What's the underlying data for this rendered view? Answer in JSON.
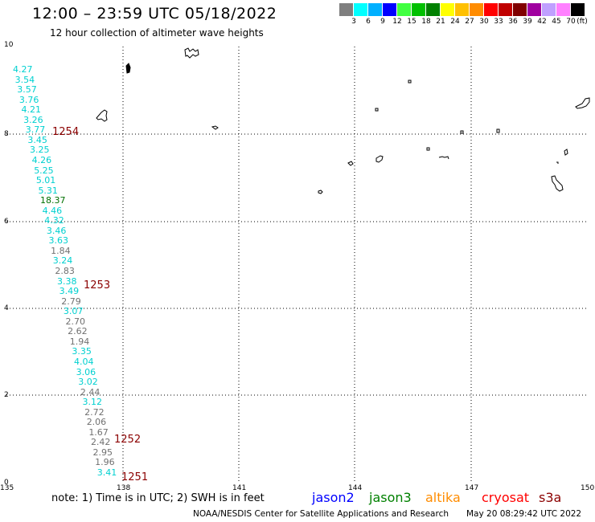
{
  "header": {
    "title": "12:00 – 23:59 UTC 05/18/2022",
    "subtitle": "12 hour collection of altimeter wave heights"
  },
  "legend": {
    "colors": [
      "#7f7f7f",
      "#00ffff",
      "#00b0ff",
      "#0000ff",
      "#40ff40",
      "#00c000",
      "#008000",
      "#ffff00",
      "#ffc000",
      "#ff8c00",
      "#ff0000",
      "#c00000",
      "#800000",
      "#a000a0",
      "#c0a0ff",
      "#ff80ff",
      "#000000"
    ],
    "labels": [
      "3",
      "6",
      "9",
      "12",
      "15",
      "18",
      "21",
      "24",
      "27",
      "30",
      "33",
      "36",
      "39",
      "42",
      "45",
      "70"
    ],
    "unit": "(ft)"
  },
  "axes": {
    "x_ticks": [
      "135",
      "138",
      "141",
      "144",
      "147",
      "150"
    ],
    "y_ticks": [
      "10",
      "8",
      "6",
      "4",
      "2",
      "0"
    ]
  },
  "measurements": [
    {
      "v": "4.27",
      "c": "#00d0d0"
    },
    {
      "v": "3.54",
      "c": "#00d0d0"
    },
    {
      "v": "3.57",
      "c": "#00d0d0"
    },
    {
      "v": "3.76",
      "c": "#00d0d0"
    },
    {
      "v": "4.21",
      "c": "#00d0d0"
    },
    {
      "v": "3.26",
      "c": "#00d0d0"
    },
    {
      "v": "3.77",
      "c": "#00d0d0"
    },
    {
      "v": "3.45",
      "c": "#00d0d0"
    },
    {
      "v": "3.25",
      "c": "#00d0d0"
    },
    {
      "v": "4.26",
      "c": "#00d0d0"
    },
    {
      "v": "5.25",
      "c": "#00d0d0"
    },
    {
      "v": "5.01",
      "c": "#00d0d0"
    },
    {
      "v": "5.31",
      "c": "#00d0d0"
    },
    {
      "v": "18.37",
      "c": "#007000"
    },
    {
      "v": "4.46",
      "c": "#00d0d0"
    },
    {
      "v": "4.32",
      "c": "#00d0d0"
    },
    {
      "v": "3.46",
      "c": "#00d0d0"
    },
    {
      "v": "3.63",
      "c": "#00d0d0"
    },
    {
      "v": "1.84",
      "c": "#707070"
    },
    {
      "v": "3.24",
      "c": "#00d0d0"
    },
    {
      "v": "2.83",
      "c": "#707070"
    },
    {
      "v": "3.38",
      "c": "#00d0d0"
    },
    {
      "v": "3.49",
      "c": "#00d0d0"
    },
    {
      "v": "2.79",
      "c": "#707070"
    },
    {
      "v": "3.07",
      "c": "#00d0d0"
    },
    {
      "v": "2.70",
      "c": "#707070"
    },
    {
      "v": "2.62",
      "c": "#707070"
    },
    {
      "v": "1.94",
      "c": "#707070"
    },
    {
      "v": "3.35",
      "c": "#00d0d0"
    },
    {
      "v": "4.04",
      "c": "#00d0d0"
    },
    {
      "v": "3.06",
      "c": "#00d0d0"
    },
    {
      "v": "3.02",
      "c": "#00d0d0"
    },
    {
      "v": "2.44",
      "c": "#707070"
    },
    {
      "v": "3.12",
      "c": "#00d0d0"
    },
    {
      "v": "2.72",
      "c": "#707070"
    },
    {
      "v": "2.06",
      "c": "#707070"
    },
    {
      "v": "1.67",
      "c": "#707070"
    },
    {
      "v": "2.42",
      "c": "#707070"
    },
    {
      "v": "2.95",
      "c": "#707070"
    },
    {
      "v": "1.96",
      "c": "#707070"
    },
    {
      "v": "3.41",
      "c": "#00d0d0"
    }
  ],
  "passes": [
    "1254",
    "1253",
    "1252",
    "1251"
  ],
  "footer": {
    "note": "note: 1) Time is in UTC; 2) SWH is in feet",
    "satellites": [
      {
        "name": "jason2",
        "color": "#0000ff"
      },
      {
        "name": "jason3",
        "color": "#008000"
      },
      {
        "name": "altika",
        "color": "#ff8c00"
      },
      {
        "name": "cryosat",
        "color": "#ff0000"
      },
      {
        "name": "s3a",
        "color": "#8b0000"
      }
    ],
    "credit": "NOAA/NESDIS Center for Satellite Applications and Research",
    "timestamp": "May 20 08:29:42 UTC 2022"
  }
}
